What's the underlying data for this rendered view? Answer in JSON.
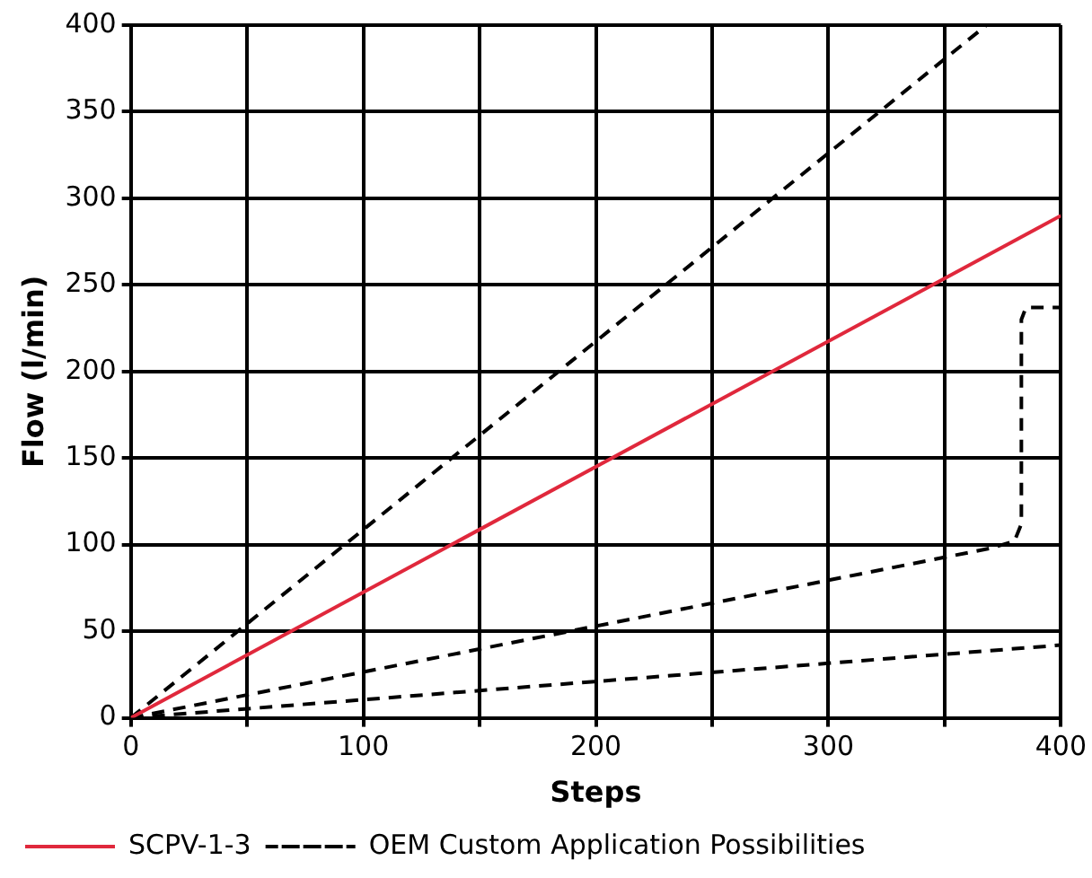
{
  "chart_data": {
    "type": "line",
    "xlabel": "Steps",
    "ylabel": "Flow (l/min)",
    "xlim": [
      0,
      400
    ],
    "xticks": [
      0,
      {
        "value": 50,
        "label": null
      },
      100,
      {
        "value": 150,
        "label": null
      },
      200,
      {
        "value": 250,
        "label": null
      },
      300,
      {
        "value": 350,
        "label": null
      },
      400
    ],
    "ylim": [
      0,
      400
    ],
    "yticks": [
      0,
      50,
      100,
      150,
      200,
      250,
      300,
      350,
      400
    ],
    "grid": true,
    "legend": "bottom left",
    "marker": "none",
    "series": [
      {
        "name": "SCPV-1-3",
        "color": "#e0283c",
        "line_style": "solid",
        "x": [
          0,
          400
        ],
        "values": [
          0,
          290
        ]
      },
      {
        "name": "OEM Custom Application Possibilities",
        "color": "#000000",
        "line_style": "dashed",
        "x": [
          0,
          368
        ],
        "values": [
          0,
          400
        ]
      },
      {
        "color": "#000000",
        "line_style": "dashed",
        "x": [
          0,
          370,
          380,
          383,
          383,
          385,
          400
        ],
        "values": [
          0,
          98,
          102,
          112,
          230,
          237,
          237
        ]
      },
      {
        "color": "#000000",
        "line_style": "dashed",
        "x": [
          0,
          400
        ],
        "values": [
          0,
          42
        ]
      }
    ]
  }
}
